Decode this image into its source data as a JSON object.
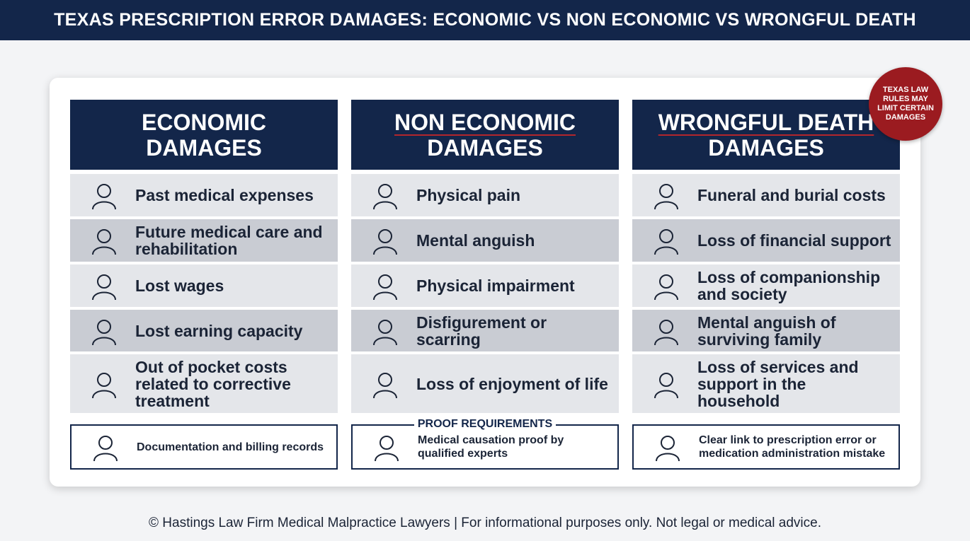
{
  "header": {
    "title": "TEXAS PRESCRIPTION ERROR DAMAGES: ECONOMIC VS NON ECONOMIC VS WRONGFUL DEATH"
  },
  "badge": "TEXAS LAW RULES MAY LIMIT CERTAIN DAMAGES",
  "columns": [
    {
      "heading": [
        "ECONOMIC",
        "DAMAGES"
      ],
      "items": [
        "Past medical expenses",
        "Future medical care and rehabilitation",
        "Lost wages",
        "Lost earning capacity",
        "Out of pocket costs related to corrective treatment"
      ]
    },
    {
      "heading": [
        "NON ECONOMIC",
        "DAMAGES"
      ],
      "items": [
        "Physical pain",
        "Mental anguish",
        "Physical impairment",
        "Disfigurement or scarring",
        "Loss of enjoyment of life"
      ]
    },
    {
      "heading": [
        "WRONGFUL DEATH",
        "DAMAGES"
      ],
      "items": [
        "Funeral and burial costs",
        "Loss of financial support",
        "Loss of companionship and society",
        "Mental anguish of surviving family",
        "Loss of services and support in the household"
      ]
    }
  ],
  "proof": {
    "label": "PROOF REQUIREMENTS",
    "items": [
      "Documentation and billing records",
      "Medical causation proof by qualified experts",
      "Clear link to prescription error or medication administration mistake"
    ]
  },
  "footer": "© Hastings Law Firm Medical Malpractice Lawyers | For informational purposes only. Not legal or medical advice."
}
